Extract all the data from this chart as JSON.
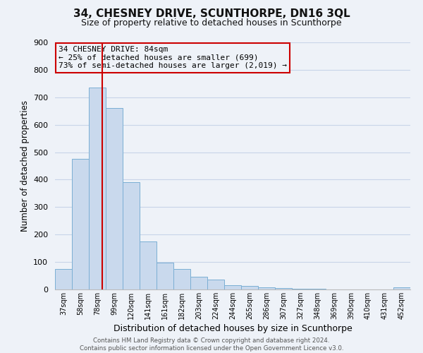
{
  "title": "34, CHESNEY DRIVE, SCUNTHORPE, DN16 3QL",
  "subtitle": "Size of property relative to detached houses in Scunthorpe",
  "xlabel": "Distribution of detached houses by size in Scunthorpe",
  "ylabel": "Number of detached properties",
  "bar_labels": [
    "37sqm",
    "58sqm",
    "78sqm",
    "99sqm",
    "120sqm",
    "141sqm",
    "161sqm",
    "182sqm",
    "203sqm",
    "224sqm",
    "244sqm",
    "265sqm",
    "286sqm",
    "307sqm",
    "327sqm",
    "348sqm",
    "369sqm",
    "390sqm",
    "410sqm",
    "431sqm",
    "452sqm"
  ],
  "bar_heights": [
    75,
    475,
    735,
    660,
    390,
    175,
    97,
    75,
    47,
    35,
    15,
    13,
    9,
    5,
    3,
    2,
    1,
    0,
    0,
    0,
    8
  ],
  "bar_color": "#c9d9ed",
  "bar_edge_color": "#7bafd4",
  "annotation_title": "34 CHESNEY DRIVE: 84sqm",
  "annotation_line1": "← 25% of detached houses are smaller (699)",
  "annotation_line2": "73% of semi-detached houses are larger (2,019) →",
  "vline_color": "#cc0000",
  "ylim": [
    0,
    900
  ],
  "yticks": [
    0,
    100,
    200,
    300,
    400,
    500,
    600,
    700,
    800,
    900
  ],
  "footer1": "Contains HM Land Registry data © Crown copyright and database right 2024.",
  "footer2": "Contains public sector information licensed under the Open Government Licence v3.0.",
  "bg_color": "#eef2f8",
  "grid_color": "#c8d4e8",
  "title_fontsize": 11,
  "subtitle_fontsize": 9
}
